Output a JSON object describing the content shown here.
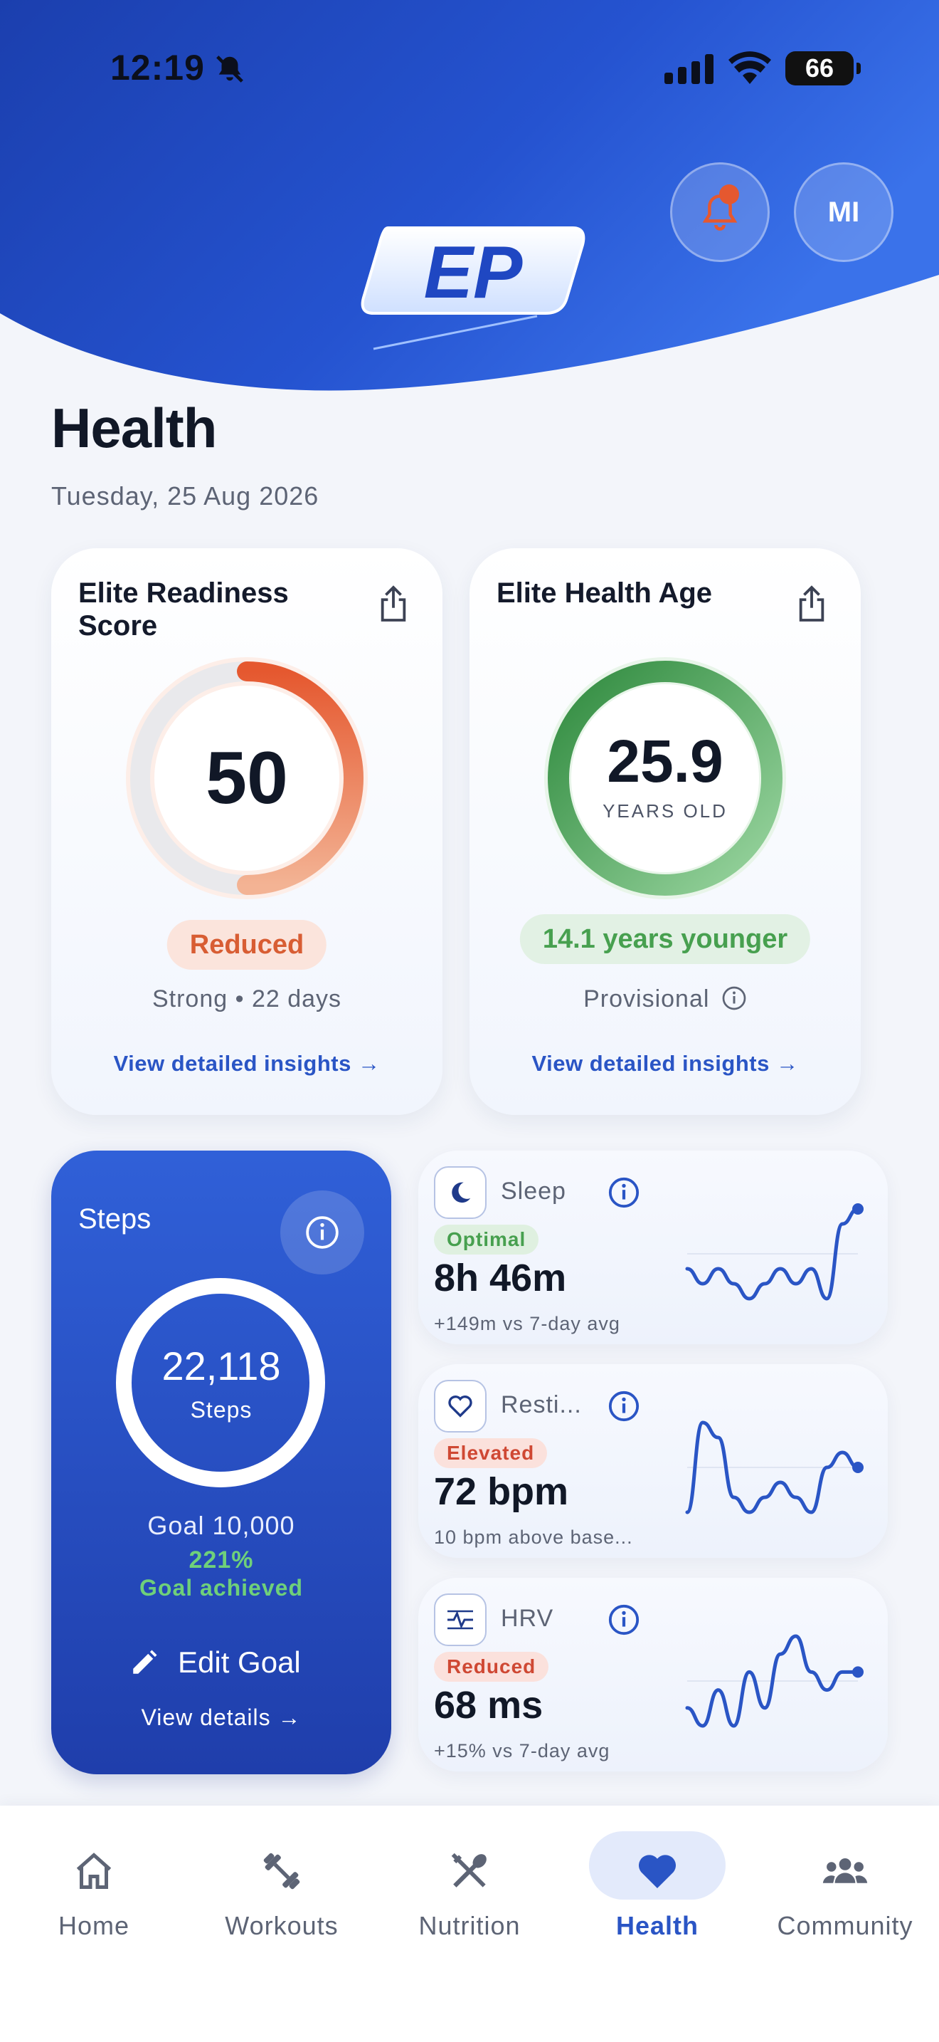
{
  "status_bar": {
    "time": "12:19",
    "battery": "66"
  },
  "header": {
    "avatar_initials": "MI",
    "logo_text": "EP"
  },
  "page": {
    "title": "Health",
    "date": "Tuesday, 25 Aug 2026"
  },
  "readiness": {
    "title": "Elite Readiness Score",
    "score": "50",
    "score_fraction": 0.5,
    "status": "Reduced",
    "subline": "Strong • 22 days",
    "link": "View detailed insights →"
  },
  "health_age": {
    "title": "Elite Health Age",
    "value": "25.9",
    "unit": "YEARS OLD",
    "status": "14.1 years younger",
    "subline": "Provisional",
    "link": "View detailed insights →"
  },
  "steps": {
    "title": "Steps",
    "value": "22,118",
    "unit": "Steps",
    "goal": "Goal 10,000",
    "percent": "221%",
    "achieved": "Goal achieved",
    "edit_label": "Edit Goal",
    "view_label": "View details →"
  },
  "metrics": [
    {
      "label": "Sleep",
      "badge": "Optimal",
      "value": "8h 46m",
      "sub": "+149m vs 7-day avg",
      "trend": [
        5,
        4,
        5,
        4,
        3,
        4,
        5,
        4,
        5,
        3,
        8,
        9
      ]
    },
    {
      "label": "Resti...",
      "badge": "Elevated",
      "value": "72 bpm",
      "sub": "10 bpm above base...",
      "trend": [
        2,
        8,
        7,
        3,
        2,
        3,
        4,
        3,
        2,
        5,
        6,
        5
      ]
    },
    {
      "label": "HRV",
      "badge": "Reduced",
      "value": "68 ms",
      "sub": "+15% vs 7-day avg",
      "trend": [
        3,
        2,
        4,
        2,
        5,
        3,
        6,
        7,
        5,
        4,
        5,
        5
      ]
    }
  ],
  "nav": [
    {
      "label": "Home",
      "icon": "home-icon"
    },
    {
      "label": "Workouts",
      "icon": "dumbbell-icon"
    },
    {
      "label": "Nutrition",
      "icon": "fork-knife-icon"
    },
    {
      "label": "Health",
      "icon": "heart-icon",
      "active": true
    },
    {
      "label": "Community",
      "icon": "community-icon"
    }
  ],
  "colors": {
    "accent": "#2a55c5",
    "orange": "#e5582f",
    "green": "#47a04f"
  }
}
